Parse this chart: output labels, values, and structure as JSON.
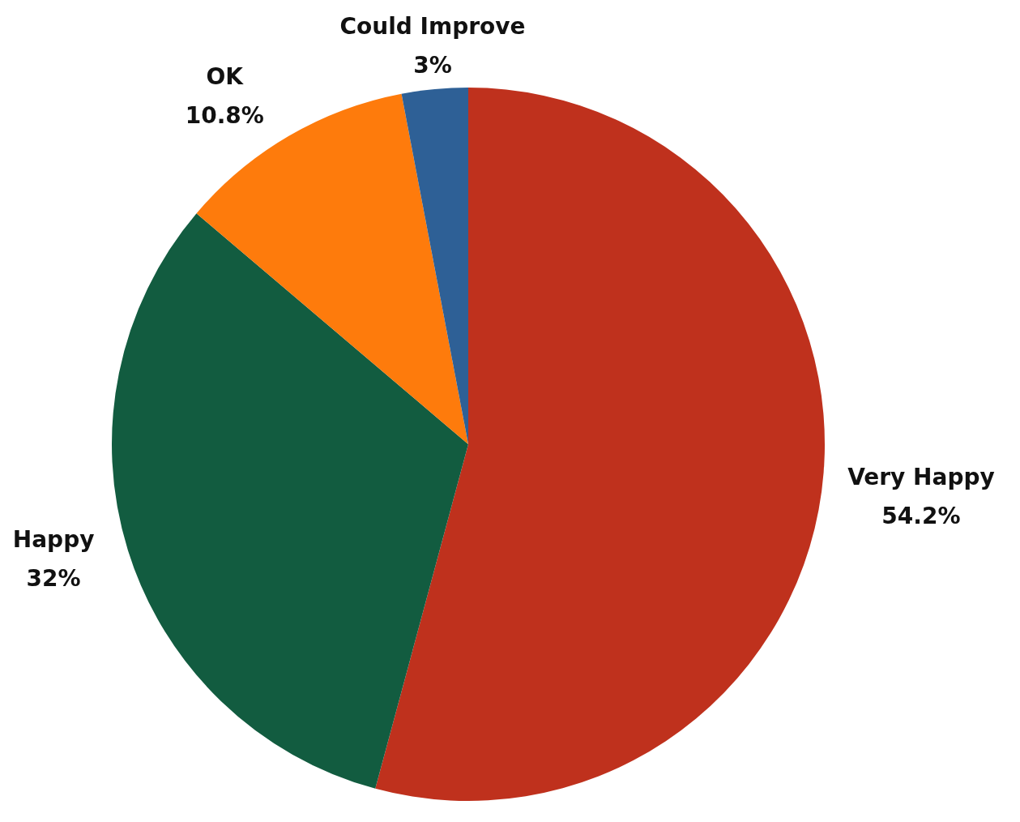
{
  "chart_data": {
    "type": "pie",
    "categories": [
      "Very Happy",
      "Happy",
      "OK",
      "Could Improve"
    ],
    "values": [
      54.2,
      32,
      10.8,
      3
    ],
    "colors": [
      "#bf311d",
      "#125c40",
      "#fe7b0c",
      "#2e6096"
    ],
    "value_labels": [
      "54.2%",
      "32%",
      "10.8%",
      "3%"
    ],
    "legend": false
  }
}
